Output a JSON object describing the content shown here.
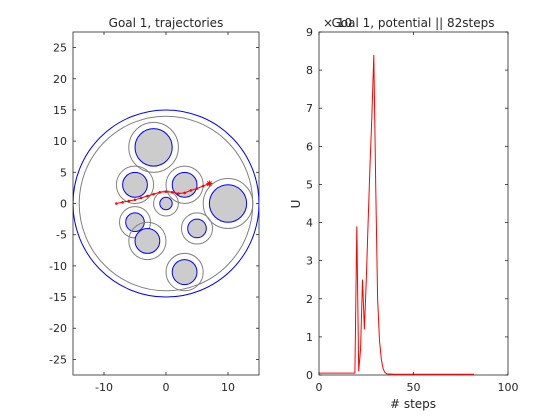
{
  "chart_data": [
    {
      "type": "scatter",
      "title": "Goal 1, trajectories",
      "xlim": [
        -15,
        15
      ],
      "ylim": [
        -27.5,
        27.5
      ],
      "xticks": [
        -10,
        0,
        10
      ],
      "yticks": [
        -25,
        -20,
        -15,
        -10,
        -5,
        0,
        5,
        10,
        15,
        20,
        25
      ],
      "xlabel": "",
      "ylabel": "",
      "workspace": {
        "cx": 0,
        "cy": 0,
        "r": 15,
        "inner_r": 14
      },
      "obstacles": [
        {
          "x": -2,
          "y": 9,
          "r": 3,
          "ring": 4
        },
        {
          "x": -5,
          "y": 3,
          "r": 2,
          "ring": 3
        },
        {
          "x": 3,
          "y": 3,
          "r": 2,
          "ring": 3
        },
        {
          "x": 10,
          "y": 0,
          "r": 3,
          "ring": 4
        },
        {
          "x": 0,
          "y": 0,
          "r": 1,
          "ring": 2
        },
        {
          "x": -5,
          "y": -3,
          "r": 1.5,
          "ring": 2.5
        },
        {
          "x": -3,
          "y": -6,
          "r": 2,
          "ring": 3
        },
        {
          "x": 5,
          "y": -4,
          "r": 1.5,
          "ring": 2.5
        },
        {
          "x": 3,
          "y": -11,
          "r": 2,
          "ring": 3
        }
      ],
      "trajectory": {
        "x": [
          -8,
          -7,
          -6,
          -5,
          -4,
          -3,
          -2,
          -1,
          0,
          1,
          2,
          3,
          4,
          5,
          6,
          7
        ],
        "y": [
          0,
          0.2,
          0.4,
          0.6,
          0.9,
          1.2,
          1.5,
          1.8,
          1.9,
          1.8,
          1.6,
          1.7,
          2.1,
          2.4,
          2.8,
          3.2
        ]
      },
      "goal": {
        "x": 7,
        "y": 3.2
      }
    },
    {
      "type": "line",
      "title": "Goal 1, potential || 82steps",
      "xlabel": "# steps",
      "ylabel": "U",
      "multiplier_label": "× 10",
      "xlim": [
        0,
        100
      ],
      "ylim": [
        0,
        9
      ],
      "xticks": [
        0,
        50,
        100
      ],
      "yticks": [
        0,
        1,
        2,
        3,
        4,
        5,
        6,
        7,
        8,
        9
      ],
      "x": [
        0,
        10,
        19,
        20,
        21,
        22,
        23,
        24,
        25,
        26,
        27,
        28,
        29,
        30,
        31,
        32,
        33,
        34,
        35,
        36,
        40,
        50,
        60,
        70,
        82
      ],
      "y": [
        0.05,
        0.05,
        0.05,
        3.9,
        0.1,
        0.7,
        2.5,
        1.2,
        2.5,
        4.0,
        5.5,
        6.8,
        8.4,
        5.0,
        2.0,
        0.9,
        0.4,
        0.15,
        0.06,
        0.03,
        0.02,
        0.02,
        0.02,
        0.02,
        0.02
      ]
    }
  ]
}
